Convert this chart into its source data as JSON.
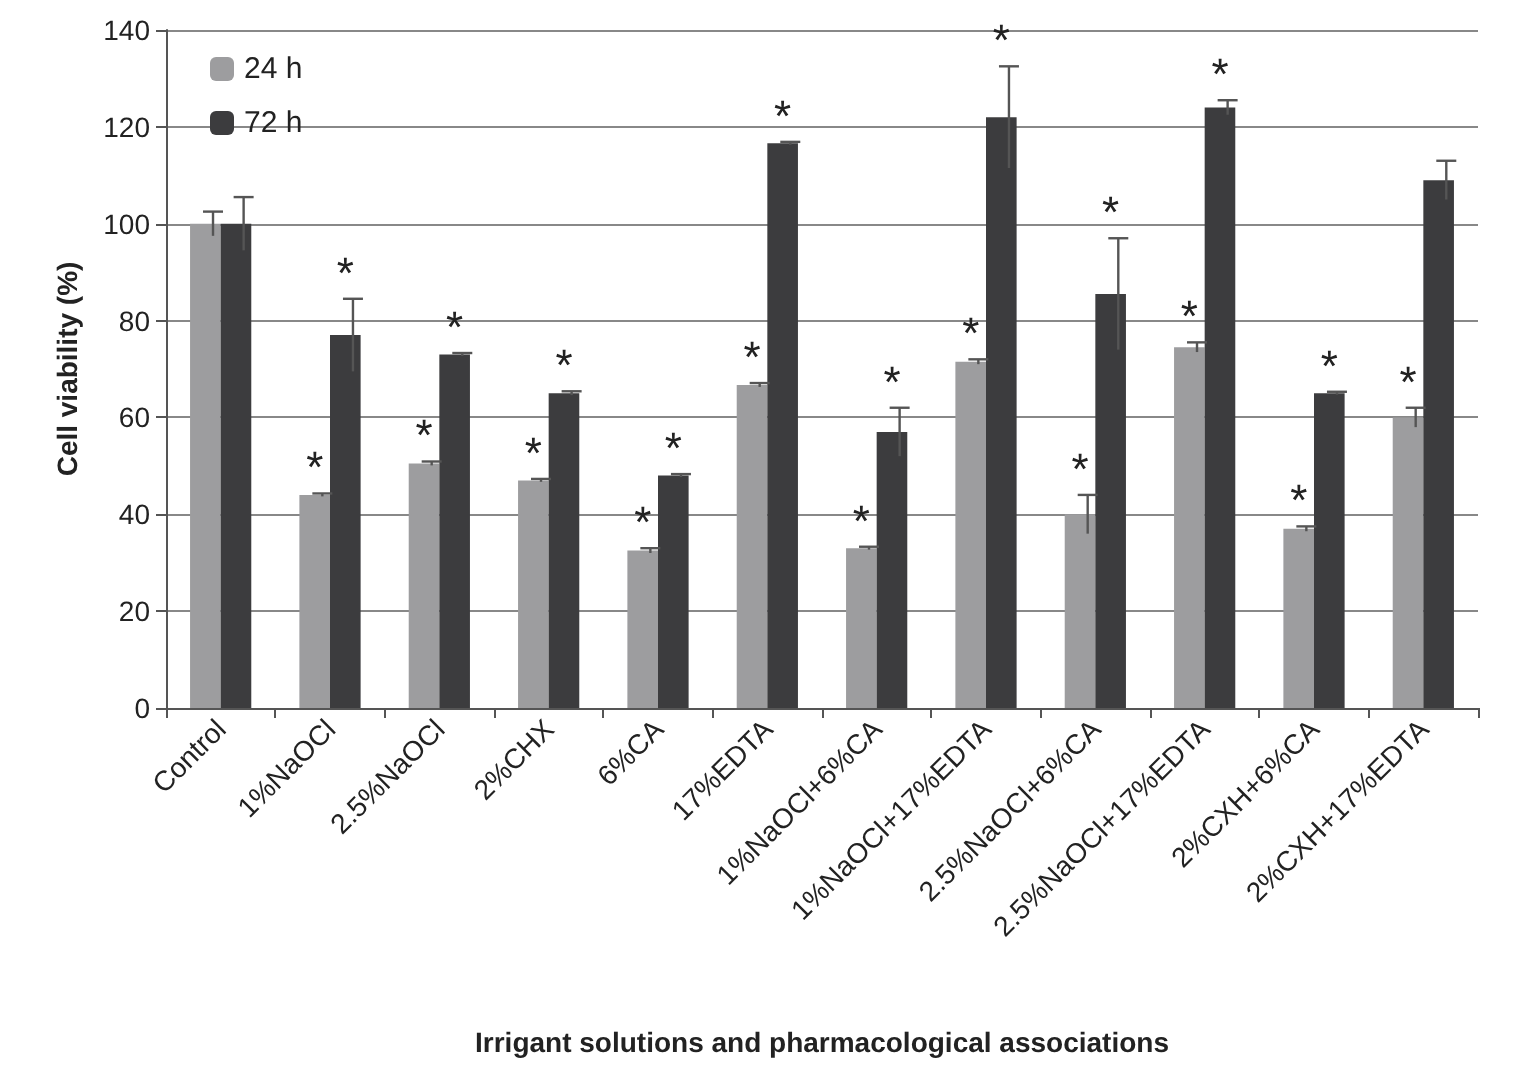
{
  "chart_data": {
    "type": "bar",
    "xlabel": "Irrigant solutions and pharmacological associations",
    "ylabel": "Cell viability (%)",
    "categories": [
      "Control",
      "1%NaOCl",
      "2.5%NaOCl",
      "2%CHX",
      "6%CA",
      "17%EDTA",
      "1%NaOCl+6%CA",
      "1%NaOCl+17%EDTA",
      "2.5%NaOCl+6%CA",
      "2.5%NaOCl+17%EDTA",
      "2%CXH+6%CA",
      "2%CXH+17%EDTA"
    ],
    "series": [
      {
        "name": "24 h",
        "color": "#9d9d9f",
        "values": [
          100,
          44,
          50.5,
          47,
          32.5,
          66.7,
          33,
          71.5,
          40,
          74.5,
          37,
          60
        ],
        "errors": [
          2.5,
          0.3,
          0.4,
          0.3,
          0.5,
          0.4,
          0.3,
          0.5,
          4,
          1,
          0.5,
          2
        ],
        "value_labels": [
          null,
          "*",
          "*",
          "*",
          "*",
          "*",
          "*",
          "*",
          "*",
          "*",
          "*",
          "*"
        ]
      },
      {
        "name": "72 h",
        "color": "#3c3c3e",
        "values": [
          100,
          77,
          73,
          65,
          48,
          116.6,
          57,
          122,
          85.5,
          124,
          65,
          109
        ],
        "errors": [
          5.5,
          7.5,
          0.3,
          0.4,
          0.3,
          0.3,
          5,
          10.5,
          11.5,
          1.5,
          0.3,
          4
        ],
        "value_labels": [
          null,
          "*",
          "*",
          "*",
          "*",
          "*",
          "*",
          "*",
          "*",
          "*",
          "*",
          null
        ]
      }
    ],
    "ylim": [
      0,
      140
    ],
    "yticks": [
      0,
      20,
      40,
      60,
      80,
      100,
      120,
      140
    ],
    "grid": "y",
    "legend": "top left"
  }
}
